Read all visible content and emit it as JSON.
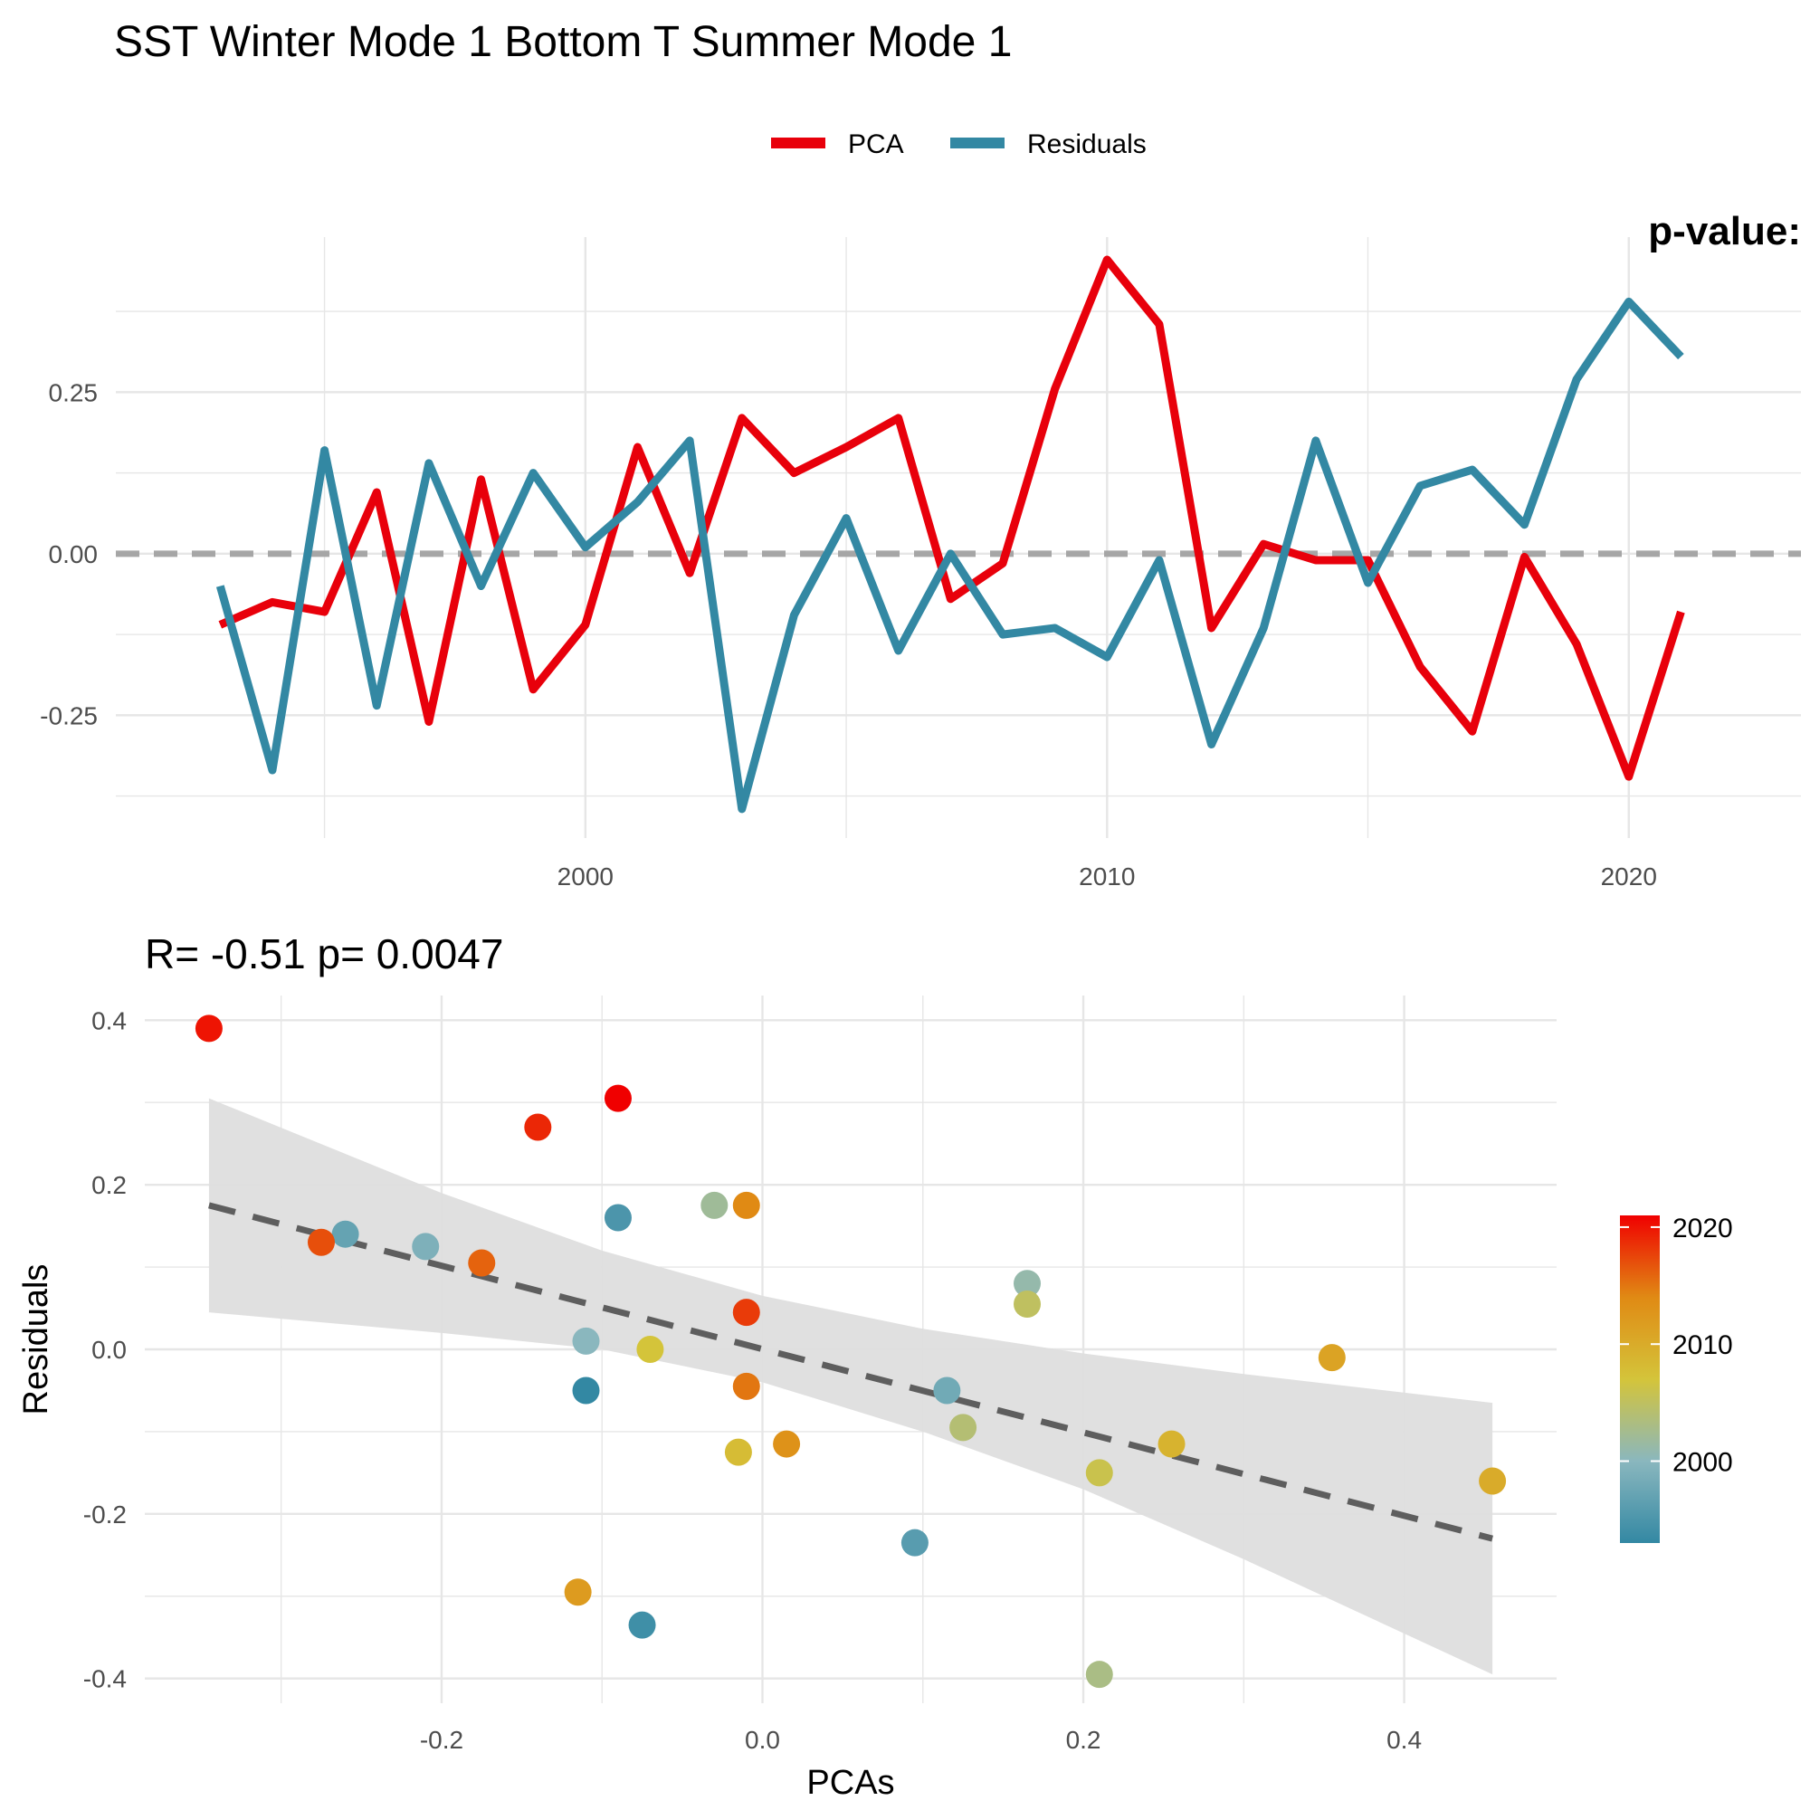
{
  "title": "SST Winter Mode 1 Bottom T Summer Mode 1",
  "corner_label": "p-value:",
  "colors": {
    "pca": "#E8000B",
    "residuals": "#3388A3",
    "zero_line": "#A6A6A6",
    "fit_line": "#5E5E5E",
    "ribbon": "#DEDEDE",
    "grid": "#E6E6E6"
  },
  "chart_data": [
    {
      "type": "line",
      "legend": {
        "placement": "top-center",
        "entries": [
          "PCA",
          "Residuals"
        ]
      },
      "x": [
        1993,
        1994,
        1995,
        1996,
        1997,
        1998,
        1999,
        2000,
        2001,
        2002,
        2003,
        2004,
        2005,
        2006,
        2007,
        2008,
        2009,
        2010,
        2011,
        2012,
        2013,
        2014,
        2015,
        2016,
        2017,
        2018,
        2019,
        2020,
        2021
      ],
      "series": [
        {
          "name": "PCA",
          "values": [
            -0.11,
            -0.075,
            -0.09,
            0.095,
            -0.26,
            0.115,
            -0.21,
            -0.11,
            0.165,
            -0.03,
            0.21,
            0.125,
            0.165,
            0.21,
            -0.07,
            -0.015,
            0.255,
            0.455,
            0.355,
            -0.115,
            0.015,
            -0.01,
            -0.01,
            -0.175,
            -0.275,
            -0.005,
            -0.14,
            -0.345,
            -0.09
          ]
        },
        {
          "name": "Residuals",
          "values": [
            -0.05,
            -0.335,
            0.16,
            -0.235,
            0.14,
            -0.05,
            0.125,
            0.01,
            0.08,
            0.175,
            -0.395,
            -0.095,
            0.055,
            -0.15,
            0.0,
            -0.125,
            -0.115,
            -0.16,
            -0.01,
            -0.295,
            -0.115,
            0.175,
            -0.045,
            0.105,
            0.13,
            0.045,
            0.27,
            0.39,
            0.305
          ]
        }
      ],
      "x_ticks": [
        "2000",
        "2010",
        "2020"
      ],
      "y_ticks": [
        "0.25",
        "0.00",
        "-0.25"
      ],
      "xlim": [
        1991.0,
        2023.3
      ],
      "ylim": [
        -0.44,
        0.49
      ],
      "reference_line_y": 0,
      "grid": true
    },
    {
      "type": "scatter",
      "subtitle": "R= -0.51  p= 0.0047",
      "xlabel": "PCAs",
      "ylabel": "Residuals",
      "x_ticks": [
        "-0.2",
        "0.0",
        "0.2",
        "0.4"
      ],
      "y_ticks": [
        "0.4",
        "0.2",
        "0.0",
        "-0.2",
        "-0.4"
      ],
      "xlim": [
        -0.385,
        0.495
      ],
      "ylim": [
        -0.43,
        0.43
      ],
      "grid": true,
      "colorbar": {
        "ticks": [
          "2020",
          "2010",
          "2000"
        ],
        "range": [
          1993,
          2021
        ],
        "placement": "right"
      },
      "points": [
        {
          "year": 1993,
          "x": -0.11,
          "y": -0.05
        },
        {
          "year": 1994,
          "x": -0.075,
          "y": -0.335
        },
        {
          "year": 1995,
          "x": -0.09,
          "y": 0.16
        },
        {
          "year": 1996,
          "x": 0.095,
          "y": -0.235
        },
        {
          "year": 1997,
          "x": -0.26,
          "y": 0.14
        },
        {
          "year": 1998,
          "x": 0.115,
          "y": -0.05
        },
        {
          "year": 1999,
          "x": -0.21,
          "y": 0.125
        },
        {
          "year": 2000,
          "x": -0.11,
          "y": 0.01
        },
        {
          "year": 2001,
          "x": 0.165,
          "y": 0.08
        },
        {
          "year": 2002,
          "x": -0.03,
          "y": 0.175
        },
        {
          "year": 2003,
          "x": 0.21,
          "y": -0.395
        },
        {
          "year": 2004,
          "x": 0.125,
          "y": -0.095
        },
        {
          "year": 2005,
          "x": 0.165,
          "y": 0.055
        },
        {
          "year": 2006,
          "x": 0.21,
          "y": -0.15
        },
        {
          "year": 2007,
          "x": -0.07,
          "y": 0.0
        },
        {
          "year": 2008,
          "x": -0.015,
          "y": -0.125
        },
        {
          "year": 2009,
          "x": 0.255,
          "y": -0.115
        },
        {
          "year": 2010,
          "x": 0.455,
          "y": -0.16
        },
        {
          "year": 2011,
          "x": 0.355,
          "y": -0.01
        },
        {
          "year": 2012,
          "x": -0.115,
          "y": -0.295
        },
        {
          "year": 2013,
          "x": 0.015,
          "y": -0.115
        },
        {
          "year": 2014,
          "x": -0.01,
          "y": 0.175
        },
        {
          "year": 2015,
          "x": -0.01,
          "y": -0.045
        },
        {
          "year": 2016,
          "x": -0.175,
          "y": 0.105
        },
        {
          "year": 2017,
          "x": -0.275,
          "y": 0.13
        },
        {
          "year": 2018,
          "x": -0.01,
          "y": 0.045
        },
        {
          "year": 2019,
          "x": -0.14,
          "y": 0.27
        },
        {
          "year": 2020,
          "x": -0.345,
          "y": 0.39
        },
        {
          "year": 2021,
          "x": -0.09,
          "y": 0.305
        }
      ],
      "fit": {
        "x": [
          -0.345,
          0.455
        ],
        "y": [
          0.175,
          -0.23
        ]
      },
      "confidence_band": {
        "x": [
          -0.345,
          -0.2,
          -0.1,
          0.0,
          0.1,
          0.2,
          0.3,
          0.455
        ],
        "upper": [
          0.305,
          0.19,
          0.12,
          0.065,
          0.025,
          -0.005,
          -0.03,
          -0.065
        ],
        "lower": [
          0.045,
          0.02,
          0.0,
          -0.04,
          -0.1,
          -0.17,
          -0.255,
          -0.395
        ]
      }
    }
  ]
}
